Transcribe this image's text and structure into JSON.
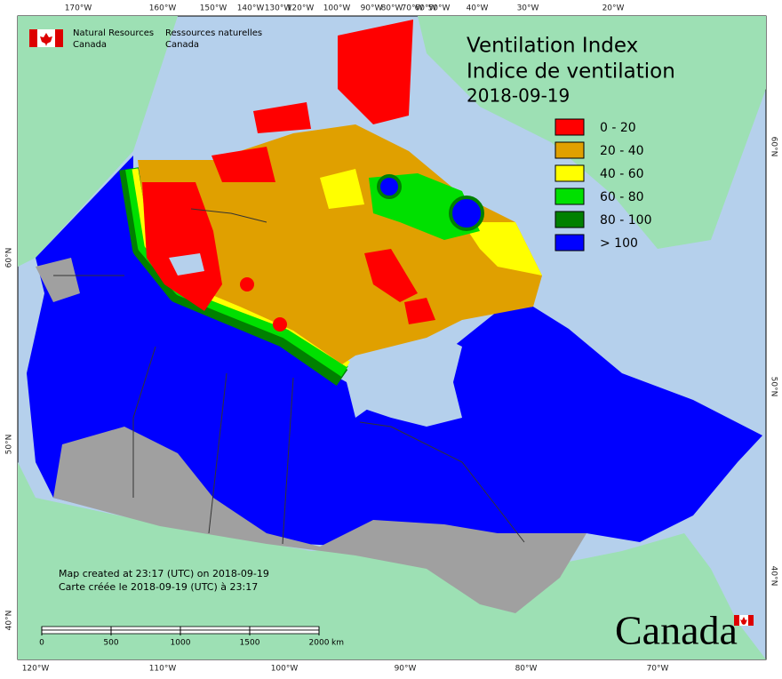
{
  "agency": {
    "en_line1": "Natural Resources",
    "en_line2": "Canada",
    "fr_line1": "Ressources naturelles",
    "fr_line2": "Canada"
  },
  "title": {
    "en": "Ventilation Index",
    "fr": "Indice de ventilation",
    "date": "2018-09-19"
  },
  "legend": [
    {
      "label": "0 - 20",
      "color": "#ff0000"
    },
    {
      "label": "20 - 40",
      "color": "#e0a000"
    },
    {
      "label": "40 - 60",
      "color": "#ffff00"
    },
    {
      "label": "60 - 80",
      "color": "#00e000"
    },
    {
      "label": "80 - 100",
      "color": "#008000"
    },
    {
      "label": "> 100",
      "color": "#0000ff"
    }
  ],
  "graticule": {
    "top": [
      "170°W",
      "160°W",
      "150°W",
      "140°W",
      "130°W",
      "120°W",
      "100°W",
      "90°W",
      "80°W",
      "70°W",
      "60°W",
      "50°W",
      "40°W",
      "30°W",
      "20°W"
    ],
    "bottom": [
      "120°W",
      "110°W",
      "100°W",
      "90°W",
      "80°W",
      "70°W"
    ],
    "left": [
      "60°N",
      "50°N",
      "40°N"
    ],
    "right": [
      "60°N",
      "50°N",
      "40°N"
    ]
  },
  "credit": {
    "en": "Map created at 23:17 (UTC) on 2018-09-19",
    "fr": "Carte créée le 2018-09-19 (UTC) à 23:17"
  },
  "scale_bar": {
    "ticks": [
      0,
      500,
      1000,
      1500,
      2000
    ],
    "unit": "km"
  },
  "wordmark": "Canada"
}
